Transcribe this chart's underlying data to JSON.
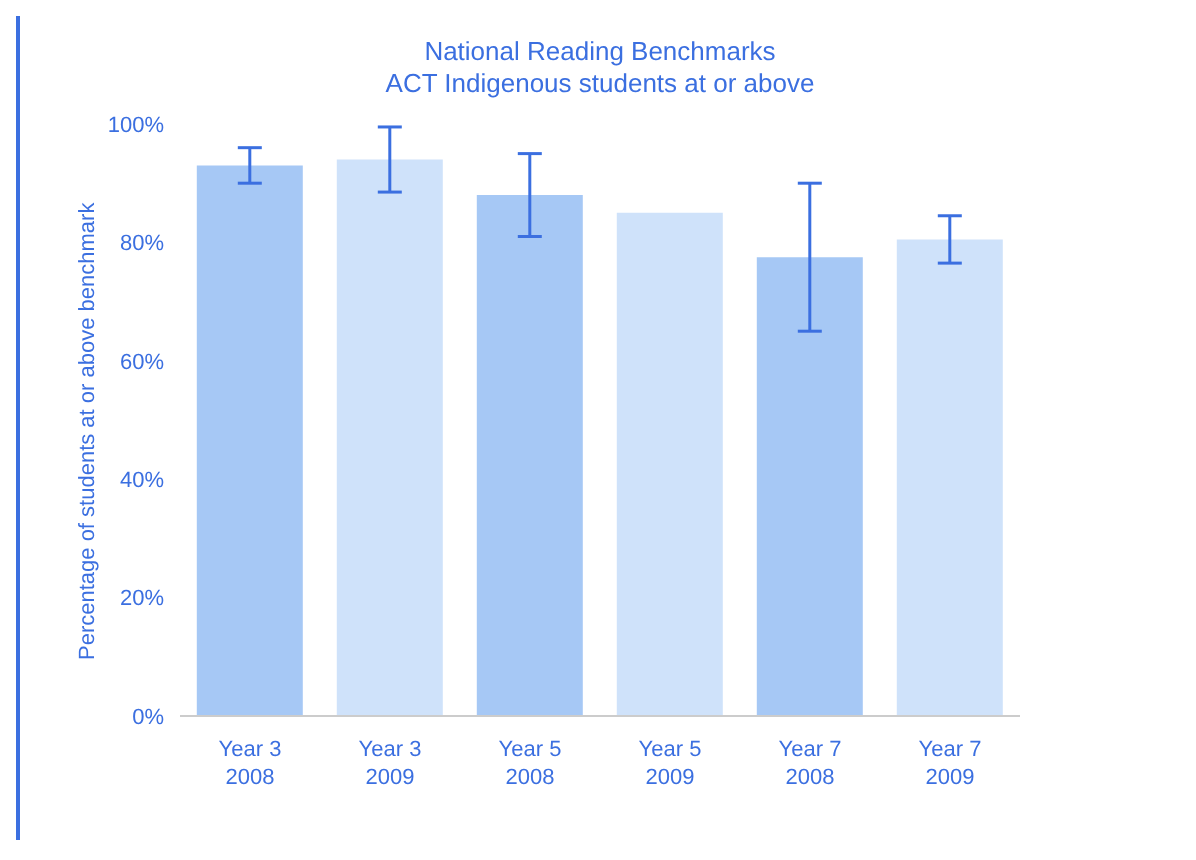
{
  "chart_data": {
    "type": "bar",
    "title": "National Reading Benchmarks",
    "subtitle": "ACT Indigenous students at or above",
    "ylabel": "Percentage of students at or above benchmark",
    "categories": [
      "Year 3 2008",
      "Year 3 2009",
      "Year 5 2008",
      "Year 5 2009",
      "Year 7 2008",
      "Year 7 2009"
    ],
    "values": [
      93,
      94,
      88,
      85,
      77.5,
      80.5
    ],
    "errors": [
      3,
      5.5,
      7,
      null,
      12.5,
      4
    ],
    "colors": [
      "#a6c8f5",
      "#cfe2fa",
      "#a6c8f5",
      "#cfe2fa",
      "#a6c8f5",
      "#cfe2fa"
    ],
    "ylim": [
      0,
      100
    ],
    "yticks": [
      {
        "value": 0,
        "label": "0%"
      },
      {
        "value": 20,
        "label": "20%"
      },
      {
        "value": 40,
        "label": "40%"
      },
      {
        "value": 60,
        "label": "60%"
      },
      {
        "value": 80,
        "label": "80%"
      },
      {
        "value": 100,
        "label": "100%"
      }
    ],
    "grid": false,
    "legend": false
  }
}
